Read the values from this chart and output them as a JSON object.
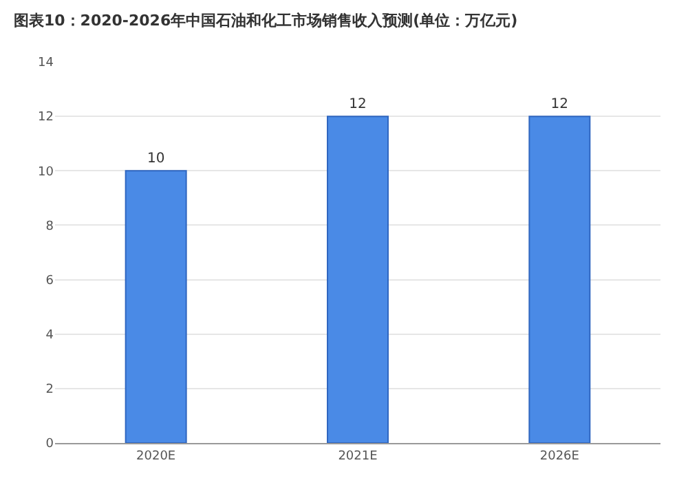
{
  "chart_data": {
    "type": "bar",
    "title": "图表10：2020-2026年中国石油和化工市场销售收入预测(单位：万亿元)",
    "categories": [
      "2020E",
      "2021E",
      "2026E"
    ],
    "values": [
      10,
      12,
      12
    ],
    "color": "#4a8ae6",
    "ylim": [
      0,
      14
    ],
    "yticks": [
      0,
      2,
      4,
      6,
      8,
      10,
      12,
      14
    ],
    "grid": "y",
    "data_labels": true
  }
}
